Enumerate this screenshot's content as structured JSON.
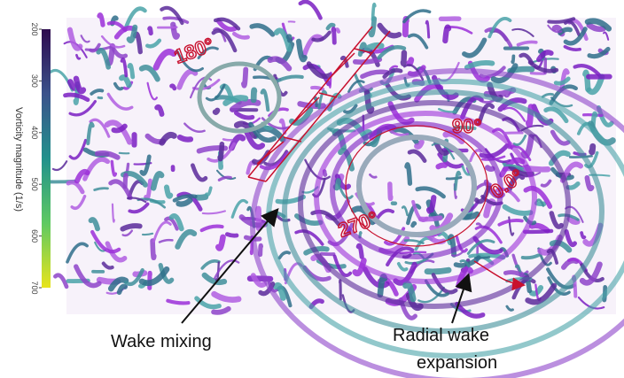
{
  "colorbar": {
    "label": "Vorticity magnitude (1/s)",
    "ticks": [
      200,
      300,
      400,
      500,
      600,
      700
    ],
    "range": [
      200,
      700
    ]
  },
  "rotor_angles": [
    "180°",
    "90°",
    "270°",
    "0.0°"
  ],
  "annotations": {
    "wake_mixing": "Wake mixing",
    "radial_wake_1": "Radial wake",
    "radial_wake_2": "expansion"
  }
}
